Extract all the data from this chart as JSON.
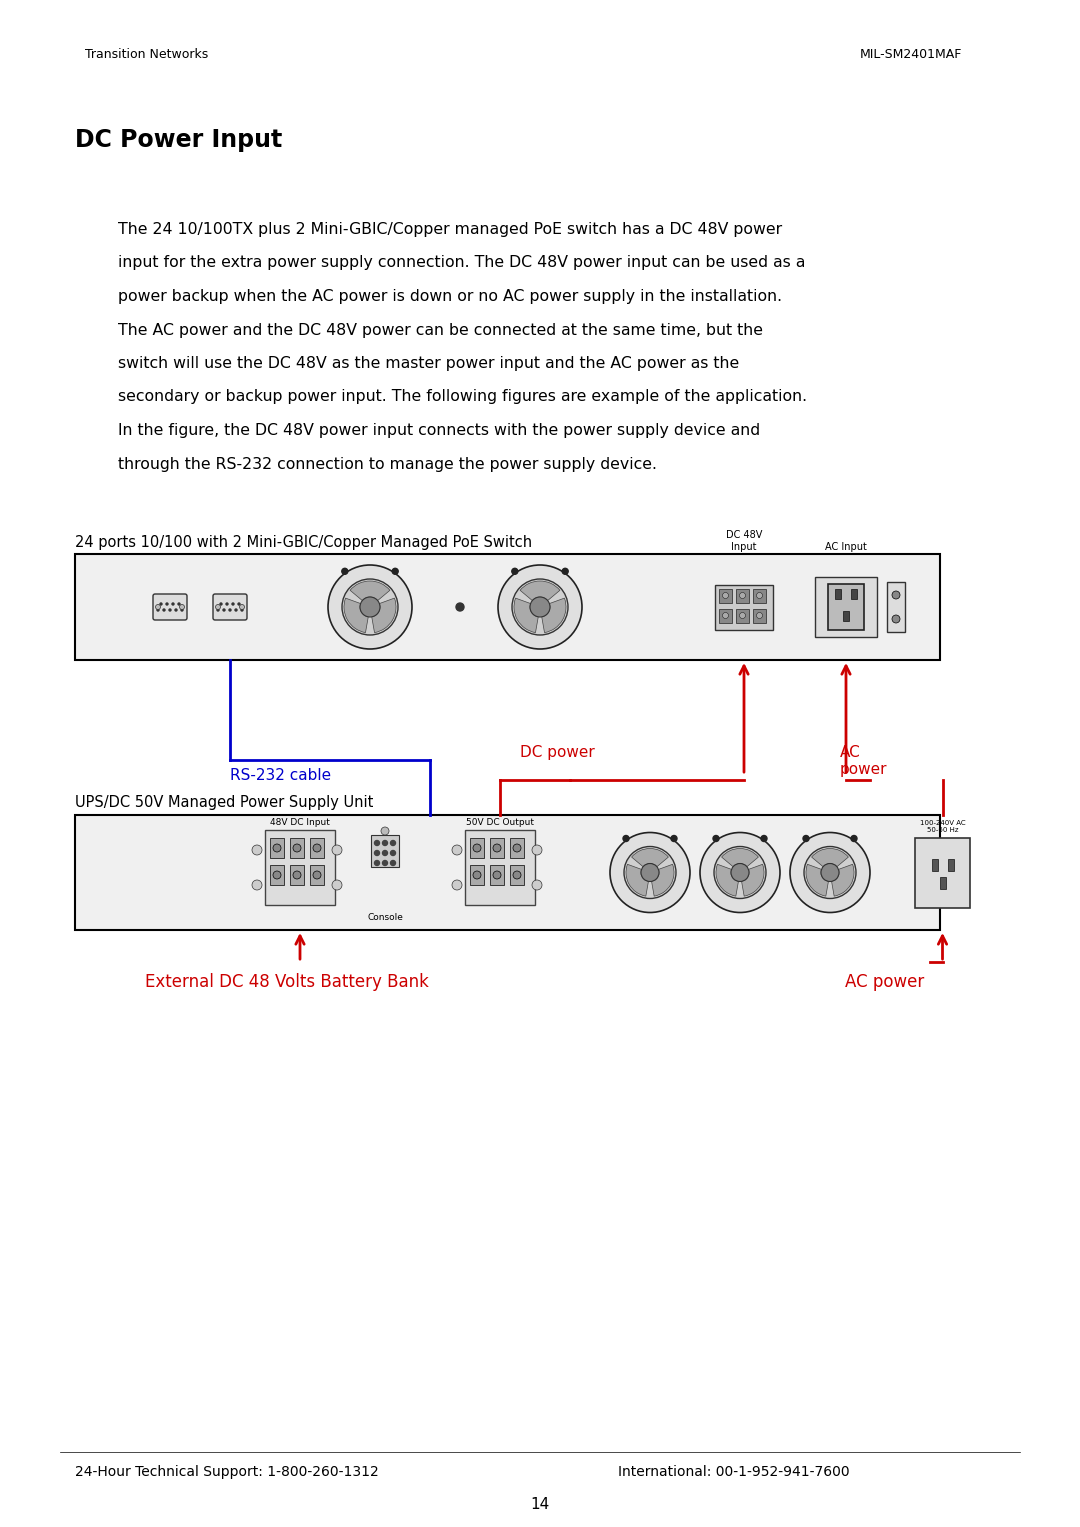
{
  "header_left": "Transition Networks",
  "header_right": "MIL-SM2401MAF",
  "title": "DC Power Input",
  "body_lines": [
    "The 24 10/100TX plus 2 Mini-GBIC/Copper managed PoE switch has a DC 48V power",
    "input for the extra power supply connection. The DC 48V power input can be used as a",
    "power backup when the AC power is down or no AC power supply in the installation.",
    "The AC power and the DC 48V power can be connected at the same time, but the",
    "switch will use the DC 48V as the master power input and the AC power as the",
    "secondary or backup power input. The following figures are example of the application.",
    "In the figure, the DC 48V power input connects with the power supply device and",
    "through the RS-232 connection to manage the power supply device."
  ],
  "diagram_label_top": "24 ports 10/100 with 2 Mini-GBIC/Copper Managed PoE Switch",
  "diagram_label_mid": "UPS/DC 50V Managed Power Supply Unit",
  "label_rs232": "RS-232 cable",
  "label_dc_power": "DC power",
  "label_ac_power_top": "AC\npower",
  "label_ext_dc": "External DC 48 Volts Battery Bank",
  "label_ac_power_bot": "AC power",
  "footer_left": "24-Hour Technical Support: 1-800-260-1312",
  "footer_right": "International: 00-1-952-941-7600",
  "page_number": "14",
  "color_blue": "#0000CC",
  "color_red": "#CC0000",
  "color_black": "#000000",
  "color_white": "#FFFFFF",
  "bg_color": "#FFFFFF",
  "box_face": "#F0F0F0",
  "box_edge": "#000000"
}
